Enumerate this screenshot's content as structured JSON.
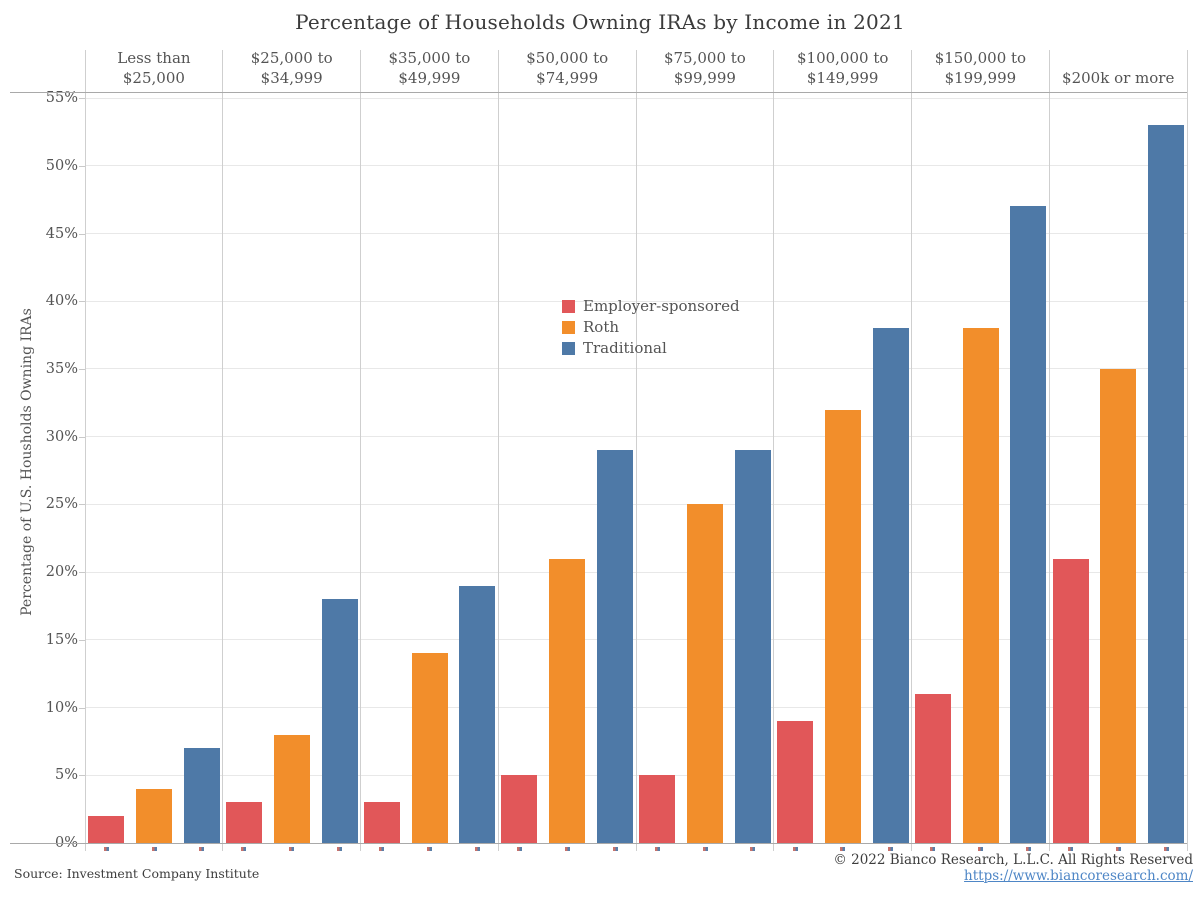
{
  "title": "Percentage of Households Owning IRAs by Income in 2021",
  "chart_data": {
    "type": "bar",
    "title": "Percentage of Households Owning IRAs by Income in 2021",
    "xlabel": "",
    "ylabel": "Percentage of U.S. Housholds Owning IRAs",
    "ylim": [
      0,
      55
    ],
    "ytick_step": 5,
    "yticks": [
      "0%",
      "5%",
      "10%",
      "15%",
      "20%",
      "25%",
      "30%",
      "35%",
      "40%",
      "45%",
      "50%",
      "55%"
    ],
    "grid": true,
    "legend_position": "inside-center-left",
    "categories": [
      "Less than $25,000",
      "$25,000 to\n$34,999",
      "$35,000 to\n$49,999",
      "$50,000 to\n$74,999",
      "$75,000 to\n$99,999",
      "$100,000 to\n$149,999",
      "$150,000 to\n$199,999",
      "$200k or more"
    ],
    "series": [
      {
        "name": "Employer-sponsored",
        "color": "#e15759",
        "values": [
          2,
          3,
          3,
          5,
          5,
          9,
          11,
          21
        ]
      },
      {
        "name": "Roth",
        "color": "#f28e2b",
        "values": [
          4,
          8,
          14,
          21,
          25,
          32,
          38,
          35
        ]
      },
      {
        "name": "Traditional",
        "color": "#4e79a7",
        "values": [
          7,
          18,
          19,
          29,
          29,
          38,
          47,
          53
        ]
      }
    ]
  },
  "footer": {
    "source": "Source: Investment Company Institute",
    "copyright": "© 2022 Bianco Research, L.L.C. All Rights Reserved",
    "link": "https://www.biancoresearch.com/"
  }
}
